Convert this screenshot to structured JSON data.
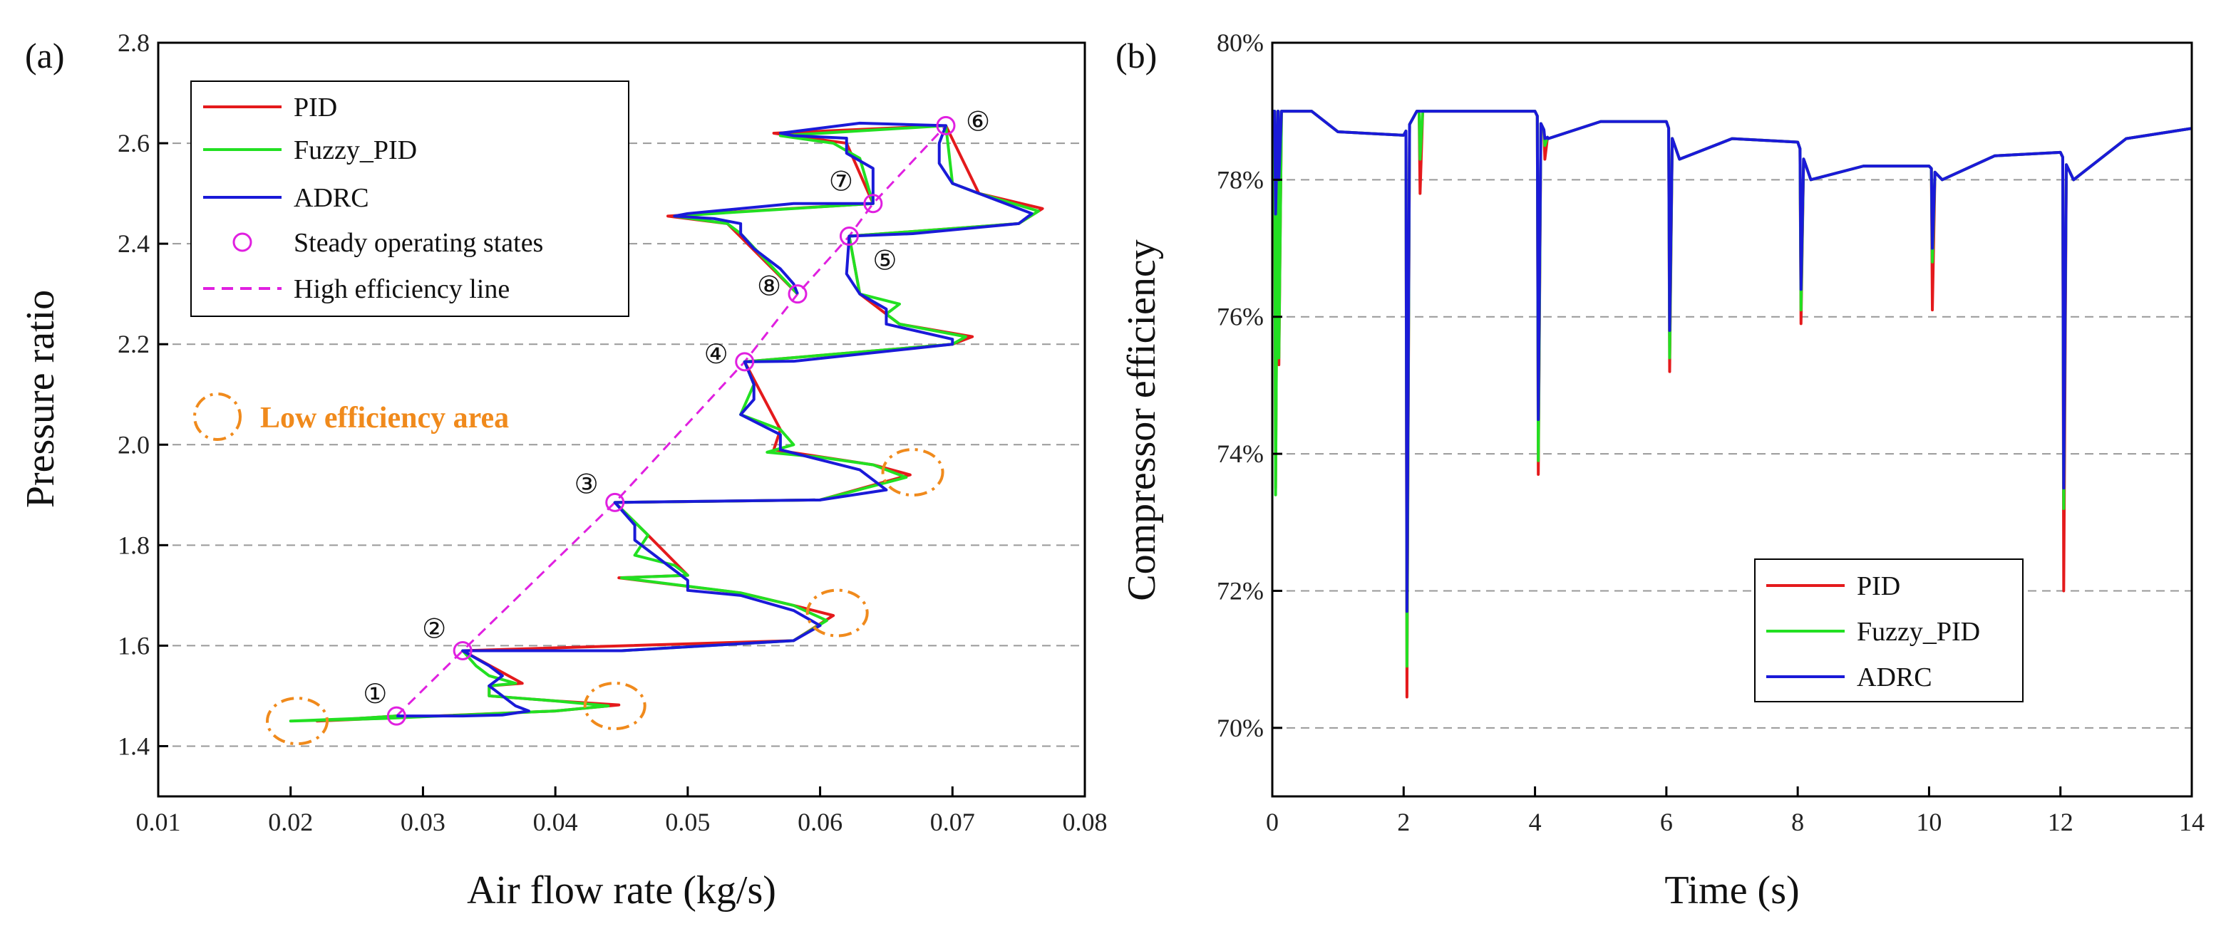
{
  "chart_data": [
    {
      "panel_label": "(a)",
      "type": "line",
      "xlabel": "Air flow rate (kg/s)",
      "ylabel": "Pressure ratio",
      "xlim": [
        0.01,
        0.08
      ],
      "ylim": [
        1.3,
        2.8
      ],
      "xticks": [
        "0.01",
        "0.02",
        "0.03",
        "0.04",
        "0.05",
        "0.06",
        "0.07",
        "0.08"
      ],
      "yticks": [
        "1.4",
        "1.6",
        "1.8",
        "2.0",
        "2.2",
        "2.4",
        "2.6",
        "2.8"
      ],
      "legend": [
        "PID",
        "Fuzzy_PID",
        "ADRC",
        "Steady operating states",
        "High efficiency line"
      ],
      "annotation": "Low efficiency area",
      "steady_points": [
        {
          "label": "①",
          "x": 0.028,
          "y": 1.46
        },
        {
          "label": "②",
          "x": 0.033,
          "y": 1.59
        },
        {
          "label": "③",
          "x": 0.0445,
          "y": 1.885
        },
        {
          "label": "④",
          "x": 0.0543,
          "y": 2.165
        },
        {
          "label": "⑤",
          "x": 0.0622,
          "y": 2.415
        },
        {
          "label": "⑥",
          "x": 0.0695,
          "y": 2.635
        },
        {
          "label": "⑦",
          "x": 0.064,
          "y": 2.48
        },
        {
          "label": "⑧",
          "x": 0.0583,
          "y": 2.3
        }
      ],
      "low_efficiency_circles": [
        {
          "x": 0.0205,
          "y": 1.45
        },
        {
          "x": 0.0445,
          "y": 1.48
        },
        {
          "x": 0.0613,
          "y": 1.665
        },
        {
          "x": 0.067,
          "y": 1.945
        }
      ],
      "series": [
        {
          "name": "ADRC",
          "points": [
            [
              0.028,
              1.46
            ],
            [
              0.031,
              1.46
            ],
            [
              0.033,
              1.46
            ],
            [
              0.036,
              1.462
            ],
            [
              0.038,
              1.47
            ],
            [
              0.037,
              1.48
            ],
            [
              0.036,
              1.5
            ],
            [
              0.035,
              1.52
            ],
            [
              0.036,
              1.54
            ],
            [
              0.035,
              1.56
            ],
            [
              0.033,
              1.59
            ],
            [
              0.036,
              1.59
            ],
            [
              0.045,
              1.59
            ],
            [
              0.058,
              1.61
            ],
            [
              0.06,
              1.64
            ],
            [
              0.058,
              1.67
            ],
            [
              0.054,
              1.7
            ],
            [
              0.05,
              1.71
            ],
            [
              0.05,
              1.73
            ],
            [
              0.049,
              1.75
            ],
            [
              0.048,
              1.77
            ],
            [
              0.046,
              1.81
            ],
            [
              0.046,
              1.84
            ],
            [
              0.0445,
              1.885
            ],
            [
              0.05,
              1.887
            ],
            [
              0.06,
              1.89
            ],
            [
              0.065,
              1.91
            ],
            [
              0.063,
              1.95
            ],
            [
              0.06,
              1.97
            ],
            [
              0.057,
              1.99
            ],
            [
              0.057,
              2.02
            ],
            [
              0.054,
              2.06
            ],
            [
              0.055,
              2.09
            ],
            [
              0.055,
              2.12
            ],
            [
              0.0543,
              2.165
            ],
            [
              0.058,
              2.166
            ],
            [
              0.07,
              2.2
            ],
            [
              0.07,
              2.21
            ],
            [
              0.065,
              2.24
            ],
            [
              0.065,
              2.27
            ],
            [
              0.063,
              2.3
            ],
            [
              0.062,
              2.34
            ],
            [
              0.0622,
              2.415
            ],
            [
              0.067,
              2.42
            ],
            [
              0.075,
              2.44
            ],
            [
              0.076,
              2.46
            ],
            [
              0.072,
              2.5
            ],
            [
              0.07,
              2.52
            ],
            [
              0.069,
              2.56
            ],
            [
              0.069,
              2.6
            ],
            [
              0.0695,
              2.635
            ],
            [
              0.063,
              2.64
            ],
            [
              0.057,
              2.62
            ],
            [
              0.058,
              2.615
            ],
            [
              0.062,
              2.61
            ],
            [
              0.062,
              2.58
            ],
            [
              0.064,
              2.55
            ],
            [
              0.064,
              2.52
            ],
            [
              0.064,
              2.48
            ],
            [
              0.058,
              2.48
            ],
            [
              0.05,
              2.46
            ],
            [
              0.049,
              2.455
            ],
            [
              0.052,
              2.45
            ],
            [
              0.054,
              2.44
            ],
            [
              0.054,
              2.42
            ],
            [
              0.055,
              2.39
            ],
            [
              0.057,
              2.35
            ],
            [
              0.058,
              2.32
            ],
            [
              0.0583,
              2.3
            ]
          ]
        },
        {
          "name": "Fuzzy_PID",
          "points": [
            [
              0.028,
              1.46
            ],
            [
              0.025,
              1.455
            ],
            [
              0.02,
              1.45
            ],
            [
              0.027,
              1.455
            ],
            [
              0.04,
              1.47
            ],
            [
              0.044,
              1.48
            ],
            [
              0.04,
              1.49
            ],
            [
              0.035,
              1.5
            ],
            [
              0.035,
              1.52
            ],
            [
              0.037,
              1.525
            ],
            [
              0.035,
              1.54
            ],
            [
              0.034,
              1.56
            ],
            [
              0.033,
              1.59
            ],
            [
              0.045,
              1.59
            ],
            [
              0.058,
              1.61
            ],
            [
              0.0605,
              1.65
            ],
            [
              0.058,
              1.68
            ],
            [
              0.054,
              1.705
            ],
            [
              0.045,
              1.735
            ],
            [
              0.05,
              1.74
            ],
            [
              0.049,
              1.76
            ],
            [
              0.046,
              1.78
            ],
            [
              0.047,
              1.82
            ],
            [
              0.0445,
              1.885
            ],
            [
              0.06,
              1.89
            ],
            [
              0.0665,
              1.935
            ],
            [
              0.064,
              1.96
            ],
            [
              0.06,
              1.975
            ],
            [
              0.056,
              1.985
            ],
            [
              0.058,
              2.0
            ],
            [
              0.057,
              2.03
            ],
            [
              0.054,
              2.06
            ],
            [
              0.055,
              2.12
            ],
            [
              0.0543,
              2.165
            ],
            [
              0.07,
              2.2
            ],
            [
              0.071,
              2.215
            ],
            [
              0.066,
              2.24
            ],
            [
              0.065,
              2.26
            ],
            [
              0.066,
              2.28
            ],
            [
              0.063,
              2.3
            ],
            [
              0.0622,
              2.415
            ],
            [
              0.075,
              2.44
            ],
            [
              0.0765,
              2.465
            ],
            [
              0.072,
              2.5
            ],
            [
              0.07,
              2.52
            ],
            [
              0.0695,
              2.635
            ],
            [
              0.057,
              2.615
            ],
            [
              0.061,
              2.6
            ],
            [
              0.063,
              2.57
            ],
            [
              0.064,
              2.48
            ],
            [
              0.049,
              2.455
            ],
            [
              0.053,
              2.44
            ],
            [
              0.054,
              2.42
            ],
            [
              0.0583,
              2.3
            ]
          ]
        },
        {
          "name": "PID",
          "points": [
            [
              0.028,
              1.46
            ],
            [
              0.022,
              1.45
            ],
            [
              0.04,
              1.47
            ],
            [
              0.0448,
              1.482
            ],
            [
              0.04,
              1.49
            ],
            [
              0.035,
              1.5
            ],
            [
              0.035,
              1.52
            ],
            [
              0.0375,
              1.525
            ],
            [
              0.033,
              1.59
            ],
            [
              0.058,
              1.61
            ],
            [
              0.061,
              1.66
            ],
            [
              0.058,
              1.68
            ],
            [
              0.054,
              1.705
            ],
            [
              0.0448,
              1.735
            ],
            [
              0.05,
              1.74
            ],
            [
              0.047,
              1.82
            ],
            [
              0.0445,
              1.885
            ],
            [
              0.06,
              1.89
            ],
            [
              0.0668,
              1.94
            ],
            [
              0.064,
              1.96
            ],
            [
              0.0565,
              1.99
            ],
            [
              0.057,
              2.03
            ],
            [
              0.0543,
              2.165
            ],
            [
              0.07,
              2.2
            ],
            [
              0.0715,
              2.215
            ],
            [
              0.066,
              2.24
            ],
            [
              0.063,
              2.3
            ],
            [
              0.0622,
              2.415
            ],
            [
              0.075,
              2.44
            ],
            [
              0.0768,
              2.47
            ],
            [
              0.072,
              2.5
            ],
            [
              0.0695,
              2.635
            ],
            [
              0.0565,
              2.62
            ],
            [
              0.062,
              2.6
            ],
            [
              0.064,
              2.48
            ],
            [
              0.0485,
              2.455
            ],
            [
              0.053,
              2.44
            ],
            [
              0.0583,
              2.3
            ]
          ]
        }
      ]
    },
    {
      "panel_label": "(b)",
      "type": "line",
      "xlabel": "Time (s)",
      "ylabel": "Compressor efficiency",
      "xlim": [
        0,
        14
      ],
      "ylim": [
        0.69,
        0.8
      ],
      "xticks": [
        "0",
        "2",
        "4",
        "6",
        "8",
        "10",
        "12",
        "14"
      ],
      "yticks": [
        "70%",
        "72%",
        "74%",
        "76%",
        "78%",
        "80%"
      ],
      "legend": [
        "PID",
        "Fuzzy_PID",
        "ADRC"
      ],
      "series": [
        {
          "name": "PID",
          "dips": [
            [
              0.05,
              73.5
            ],
            [
              0.1,
              75.3
            ],
            [
              2.05,
              70.45
            ],
            [
              2.25,
              77.8
            ],
            [
              4.05,
              73.7
            ],
            [
              4.15,
              78.3
            ],
            [
              6.05,
              75.2
            ],
            [
              8.05,
              75.9
            ],
            [
              10.05,
              76.1
            ],
            [
              12.05,
              72.0
            ]
          ]
        },
        {
          "name": "Fuzzy_PID",
          "dips": [
            [
              0.05,
              73.4
            ],
            [
              0.1,
              75.4
            ],
            [
              2.05,
              70.9
            ],
            [
              2.25,
              78.3
            ],
            [
              4.05,
              73.9
            ],
            [
              4.15,
              78.5
            ],
            [
              6.05,
              75.4
            ],
            [
              8.05,
              76.1
            ],
            [
              10.05,
              76.8
            ],
            [
              12.05,
              73.2
            ]
          ]
        },
        {
          "name": "ADRC",
          "dips": [
            [
              0.05,
              77.5
            ],
            [
              0.1,
              78.0
            ],
            [
              2.05,
              71.7
            ],
            [
              2.25,
              79.0
            ],
            [
              4.05,
              74.5
            ],
            [
              4.15,
              78.6
            ],
            [
              6.05,
              75.8
            ],
            [
              8.05,
              76.4
            ],
            [
              10.05,
              77.0
            ],
            [
              12.05,
              73.5
            ]
          ]
        }
      ],
      "plateaus": [
        [
          0,
          79.0
        ],
        [
          0.6,
          79.0
        ],
        [
          1.0,
          78.7
        ],
        [
          2.0,
          78.65
        ],
        [
          2.2,
          79.0
        ],
        [
          4.0,
          79.0
        ],
        [
          4.2,
          78.6
        ],
        [
          5.0,
          78.85
        ],
        [
          6.0,
          78.85
        ],
        [
          6.2,
          78.3
        ],
        [
          7.0,
          78.6
        ],
        [
          8.0,
          78.55
        ],
        [
          8.2,
          78.0
        ],
        [
          9.0,
          78.2
        ],
        [
          10.0,
          78.2
        ],
        [
          10.2,
          78.0
        ],
        [
          11.0,
          78.35
        ],
        [
          12.0,
          78.4
        ],
        [
          12.2,
          78.0
        ],
        [
          13.0,
          78.6
        ],
        [
          14.0,
          78.75
        ]
      ]
    }
  ],
  "colors": {
    "PID": "#E41A1C",
    "Fuzzy_PID": "#22E022",
    "ADRC": "#1A1AD8",
    "steady": "#E020E0",
    "low": "#F08A1C",
    "grid": "#999999"
  }
}
